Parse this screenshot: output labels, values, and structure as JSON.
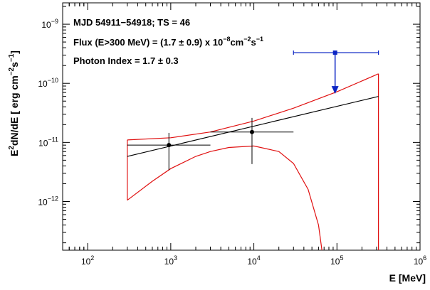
{
  "chart_data": {
    "type": "scatter",
    "xscale": "log",
    "yscale": "log",
    "xlim": [
      50,
      1000000
    ],
    "ylim": [
      1.5e-13,
      2.3e-09
    ],
    "grid": false,
    "xlabel": "E [MeV]",
    "ylabel": {
      "base": "E",
      "sup1": "2",
      "mid": "dN/dE [ erg cm",
      "sup2": "−2",
      "mid2": "s",
      "sup3": "−1",
      "end": "]"
    },
    "x_ticks": [
      {
        "value": 100,
        "base": "10",
        "exp": "2"
      },
      {
        "value": 1000,
        "base": "10",
        "exp": "3"
      },
      {
        "value": 10000,
        "base": "10",
        "exp": "4"
      },
      {
        "value": 100000,
        "base": "10",
        "exp": "5"
      },
      {
        "value": 1000000,
        "base": "10",
        "exp": "6"
      }
    ],
    "y_ticks": [
      {
        "value": 1e-12,
        "base": "10",
        "exp": "−12"
      },
      {
        "value": 1e-11,
        "base": "10",
        "exp": "−11"
      },
      {
        "value": 1e-10,
        "base": "10",
        "exp": "−10"
      },
      {
        "value": 1e-09,
        "base": "10",
        "exp": "−9"
      }
    ],
    "annotations": {
      "line1": "MJD 54911−54918;  TS = 46",
      "line2_pre": "Flux (E>300 MeV) = (1.7 ± 0.9) x 10",
      "line2_exp1": "−8",
      "line2_mid": "cm",
      "line2_exp2": "−2",
      "line2_mid2": "s",
      "line2_exp3": "−1",
      "line3": "Photon Index = 1.7 ± 0.3"
    },
    "data_points": [
      {
        "x": 950,
        "xlo": 300,
        "xhi": 3000,
        "y": 9e-12,
        "ylo": 3.4e-12,
        "yhi": 1.45e-11
      },
      {
        "x": 9500,
        "xlo": 3000,
        "xhi": 30000,
        "y": 1.5e-11,
        "ylo": 4.3e-12,
        "yhi": 2.6e-11
      }
    ],
    "upper_limit": {
      "x": 95000,
      "xlo": 30000,
      "xhi": 316000,
      "y": 3.3e-10,
      "arrow_to": 7e-11
    },
    "powerlaw_fit": {
      "x": [
        300,
        316000
      ],
      "y": [
        5.8e-12,
        6e-11
      ]
    },
    "butterfly_upper": {
      "x": [
        300,
        1000,
        3000,
        10000,
        30000,
        100000,
        316000
      ],
      "y": [
        1.1e-11,
        1.2e-11,
        1.5e-11,
        2.3e-11,
        3.8e-11,
        7.2e-11,
        1.45e-10
      ]
    },
    "butterfly_lower": {
      "x": [
        300,
        600,
        1000,
        2000,
        3000,
        5000,
        10000,
        20000,
        30000,
        45000,
        60000,
        66000
      ],
      "y": [
        1.05e-12,
        2.2e-12,
        3.6e-12,
        5.8e-12,
        7e-12,
        8.2e-12,
        8.7e-12,
        7e-12,
        4.4e-12,
        1.6e-12,
        4e-13,
        1.5e-13
      ]
    },
    "butterfly_right_edge_x": 316000,
    "colors": {
      "data": "#000000",
      "upper_limit": "#0b24c4",
      "butterfly": "#e01010",
      "fit": "#000000",
      "axes": "#000000"
    }
  }
}
